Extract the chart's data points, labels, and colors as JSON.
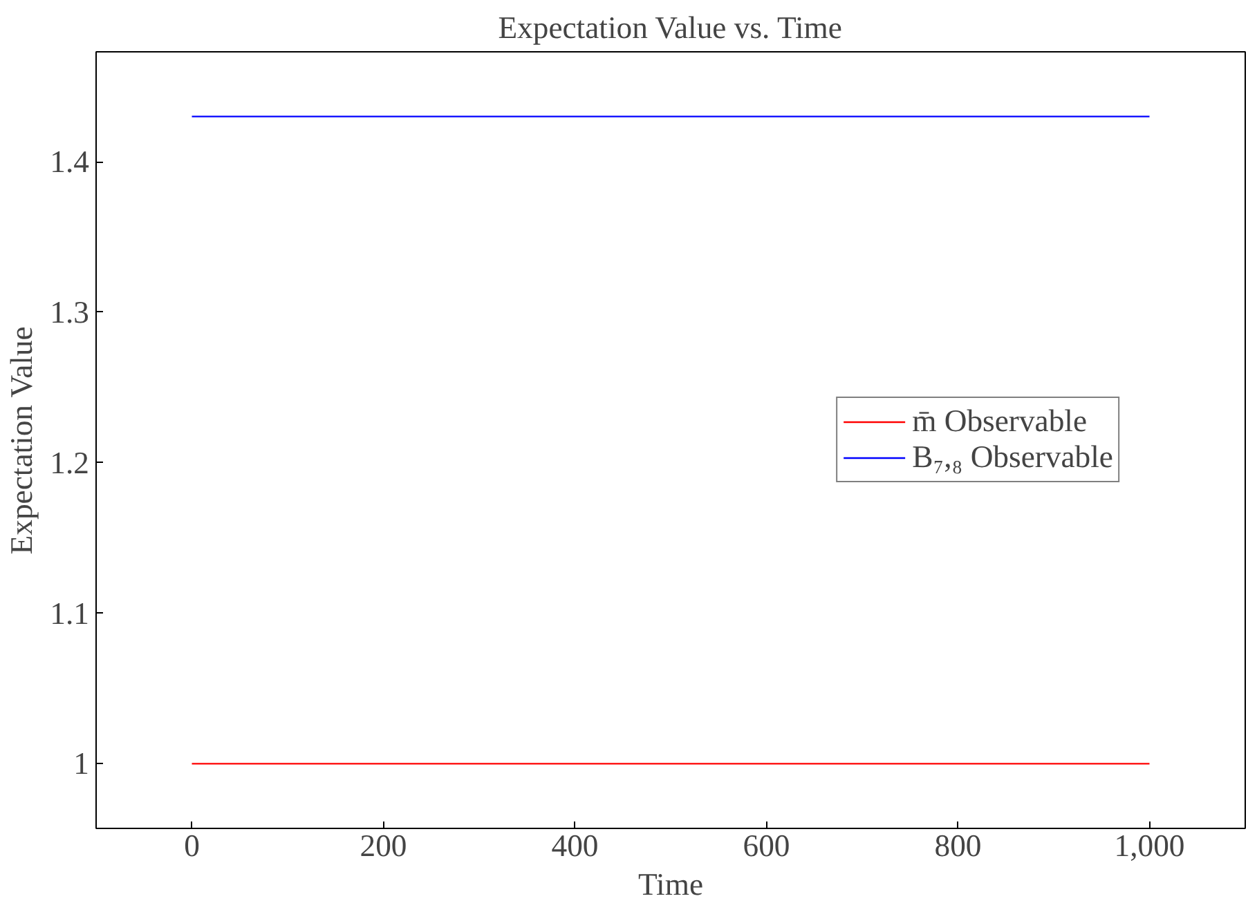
{
  "chart_data": {
    "type": "line",
    "title": "Expectation Value vs. Time",
    "xlabel": "Time",
    "ylabel": "Expectation Value",
    "x": [
      0,
      1000
    ],
    "series": [
      {
        "name": "m̄ Observable",
        "color": "#ff0000",
        "values": [
          1.0,
          1.0
        ]
      },
      {
        "name": "B₇,₈ Observable",
        "color": "#0000ff",
        "values": [
          1.43,
          1.43
        ]
      }
    ],
    "xlim": [
      -100,
      1100
    ],
    "ylim": [
      0.957,
      1.473
    ],
    "xticks": [
      0,
      200,
      400,
      600,
      800,
      {
        "value": 1000,
        "label": "1,000"
      }
    ],
    "yticks": [
      1,
      1.1,
      1.2,
      1.3,
      1.4
    ],
    "grid": false,
    "legend": "right",
    "marker": "none",
    "line_style": "solid"
  }
}
